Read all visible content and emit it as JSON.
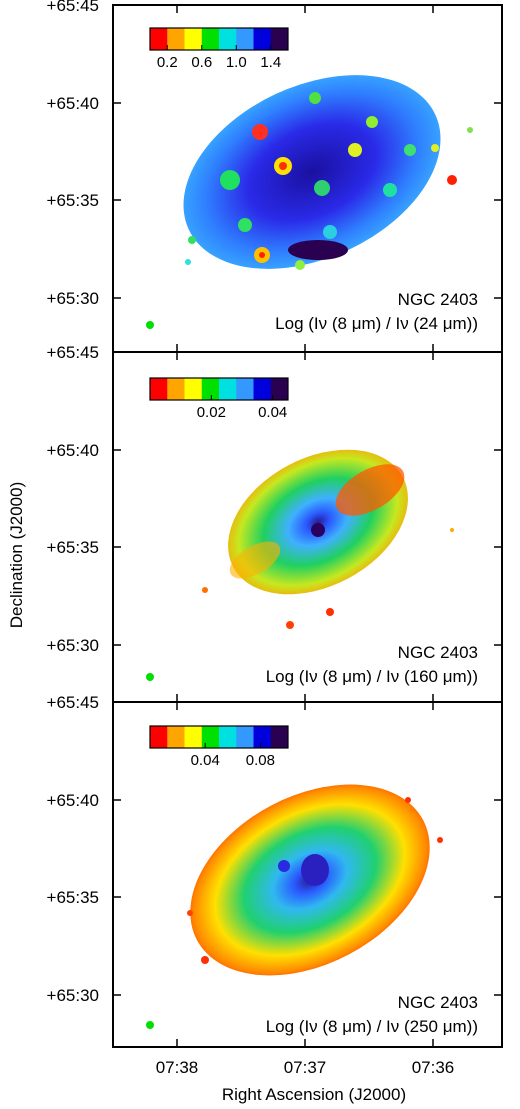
{
  "xlabel": "Right Ascension (J2000)",
  "ylabel": "Declination (J2000)",
  "x_ticks": [
    "07:38",
    "07:37",
    "07:36"
  ],
  "y_ticks": [
    "+65:45",
    "+65:40",
    "+65:35",
    "+65:30"
  ],
  "chart_data": [
    {
      "type": "heatmap",
      "object": "NGC 2403",
      "ratio_label": "Log (Iν (8 μm) / Iν (24 μm))",
      "colorbar": {
        "colors": [
          "#ff0000",
          "#ffa500",
          "#ffff00",
          "#00e000",
          "#00e0e0",
          "#3399ff",
          "#0000dd",
          "#2a0050"
        ],
        "ticks": [
          "0.2",
          "0.6",
          "1.0",
          "1.4"
        ],
        "tick_values": [
          0.2,
          0.6,
          1.0,
          1.4
        ],
        "range": [
          0.0,
          1.6
        ]
      },
      "xlim": [
        "07:38:20",
        "07:35:20"
      ],
      "ylim": [
        "+65:27",
        "+65:45"
      ]
    },
    {
      "type": "heatmap",
      "object": "NGC 2403",
      "ratio_label": "Log (Iν (8 μm) / Iν (160 μm))",
      "colorbar": {
        "colors": [
          "#ff0000",
          "#ffa500",
          "#ffff00",
          "#00e000",
          "#00e0e0",
          "#3399ff",
          "#0000dd",
          "#2a0050"
        ],
        "ticks": [
          "0.02",
          "0.04"
        ],
        "tick_values": [
          0.02,
          0.04
        ],
        "range": [
          0.0,
          0.045
        ]
      },
      "xlim": [
        "07:38:20",
        "07:35:20"
      ],
      "ylim": [
        "+65:27",
        "+65:45"
      ]
    },
    {
      "type": "heatmap",
      "object": "NGC 2403",
      "ratio_label": "Log (Iν (8 μm) / Iν (250 μm))",
      "colorbar": {
        "colors": [
          "#ff0000",
          "#ffa500",
          "#ffff00",
          "#00e000",
          "#00e0e0",
          "#3399ff",
          "#0000dd",
          "#2a0050"
        ],
        "ticks": [
          "0.04",
          "0.08"
        ],
        "tick_values": [
          0.04,
          0.08
        ],
        "range": [
          0.0,
          0.1
        ]
      },
      "xlim": [
        "07:38:20",
        "07:35:20"
      ],
      "ylim": [
        "+65:27",
        "+65:45"
      ]
    }
  ]
}
